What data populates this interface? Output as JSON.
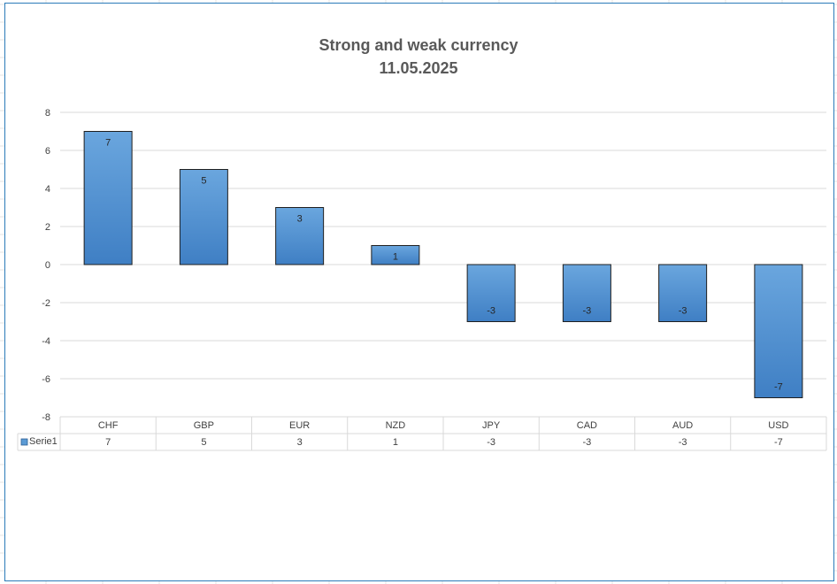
{
  "chart_data": {
    "type": "bar",
    "title": "Strong and weak currency",
    "subtitle": "11.05.2025",
    "categories": [
      "CHF",
      "GBP",
      "EUR",
      "NZD",
      "JPY",
      "CAD",
      "AUD",
      "USD"
    ],
    "series": [
      {
        "name": "Serie1",
        "values": [
          7,
          5,
          3,
          1,
          -3,
          -3,
          -3,
          -7
        ],
        "color": "#5b9bd5"
      }
    ],
    "ylim": [
      -8,
      8
    ],
    "yticks": [
      "8",
      "6",
      "4",
      "2",
      "0",
      "-2",
      "-4",
      "-6",
      "-8"
    ],
    "grid": true,
    "legend": "data-table-left",
    "data_table": true
  }
}
